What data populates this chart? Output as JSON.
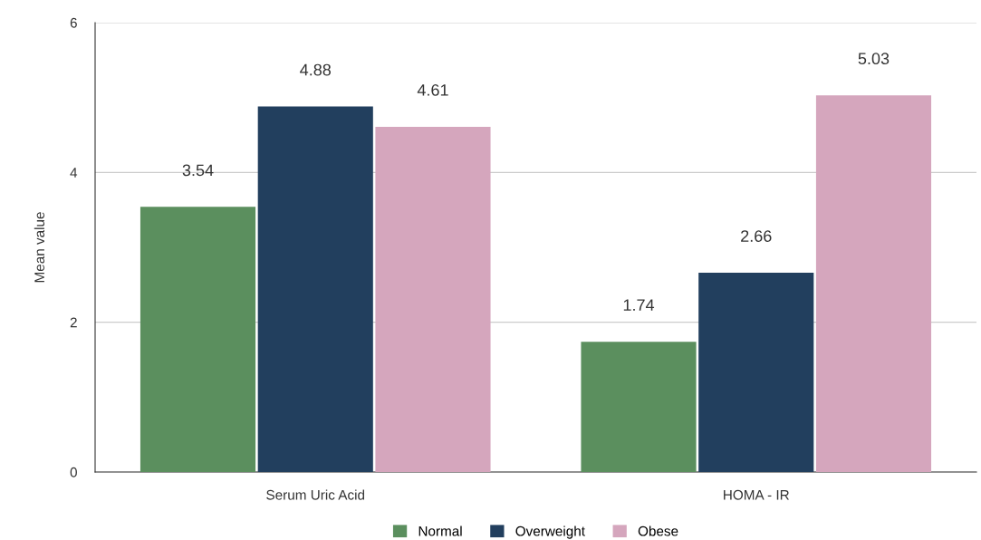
{
  "chart_data": {
    "type": "bar",
    "ylabel": "Mean value",
    "categories": [
      "Serum Uric Acid",
      "HOMA - IR"
    ],
    "series": [
      {
        "name": "Normal",
        "color": "#5b8f5e",
        "values": [
          3.54,
          1.74
        ]
      },
      {
        "name": "Overweight",
        "color": "#223f5e",
        "values": [
          4.88,
          2.66
        ]
      },
      {
        "name": "Obese",
        "color": "#d5a6bd",
        "values": [
          4.61,
          5.03
        ]
      }
    ],
    "ylim": [
      0,
      6
    ],
    "yticks": [
      0,
      2,
      4,
      6
    ],
    "grid": "y",
    "legend": "bottom",
    "data_labels": true
  }
}
